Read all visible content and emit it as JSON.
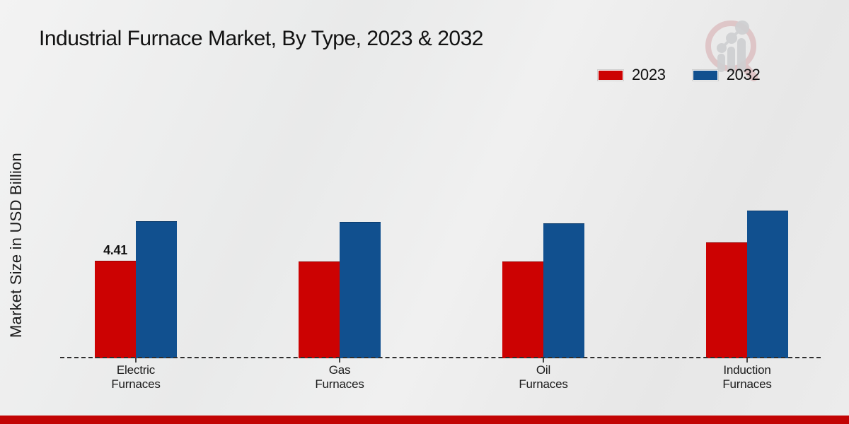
{
  "title": "Industrial Furnace Market, By Type, 2023 & 2032",
  "ylabel": "Market Size in USD Billion",
  "branding": {
    "logo": "market-research-magnifier-bars-logo-watermark",
    "logo_ring_color": "#d9aeb1",
    "logo_bars_color": "#c9cacc",
    "footer_bar_color": "#c20404"
  },
  "chart_data": {
    "type": "bar",
    "title": "Industrial Furnace Market, By Type, 2023 & 2032",
    "xlabel": "",
    "ylabel": "Market Size in USD Billion",
    "ylim": [
      0,
      7.5
    ],
    "grid": false,
    "baseline_style": "dashed",
    "legend_position": "top-right",
    "categories": [
      {
        "name": "Electric Furnaces",
        "lines": [
          "Electric",
          "Furnaces"
        ]
      },
      {
        "name": "Gas Furnaces",
        "lines": [
          "Gas",
          "Furnaces"
        ]
      },
      {
        "name": "Oil Furnaces",
        "lines": [
          "Oil",
          "Furnaces"
        ]
      },
      {
        "name": "Induction Furnaces",
        "lines": [
          "Induction",
          "Furnaces"
        ]
      }
    ],
    "series": [
      {
        "name": "2023",
        "color": "#cc0202",
        "edge_color": "#960000",
        "values": [
          4.41,
          4.38,
          4.38,
          5.24
        ]
      },
      {
        "name": "2032",
        "color": "#11508f",
        "edge_color": "#0a3a6b",
        "values": [
          6.2,
          6.17,
          6.1,
          6.68
        ]
      }
    ],
    "data_labels": [
      {
        "series": "2023",
        "category": "Electric Furnaces",
        "text": "4.41"
      }
    ]
  }
}
